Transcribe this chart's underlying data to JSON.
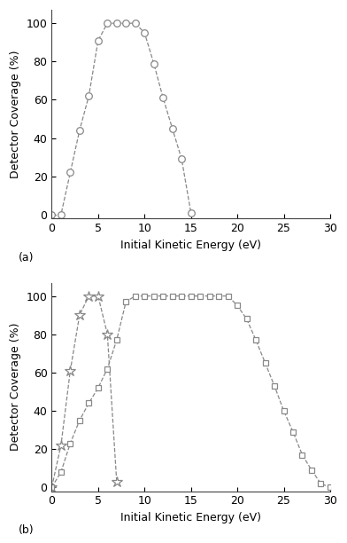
{
  "panel_a": {
    "x": [
      0,
      1,
      2,
      3,
      4,
      5,
      6,
      7,
      8,
      9,
      10,
      11,
      12,
      13,
      14,
      15
    ],
    "y": [
      0,
      0,
      22,
      44,
      62,
      91,
      100,
      100,
      100,
      100,
      95,
      79,
      61,
      45,
      29,
      1
    ],
    "color": "#888888",
    "linestyle": "--",
    "marker": "o",
    "markersize": 5.5,
    "markerfacecolor": "white",
    "markeredgecolor": "#888888",
    "linewidth": 0.9
  },
  "panel_b_star": {
    "x": [
      0,
      1,
      2,
      3,
      4,
      5,
      6,
      7
    ],
    "y": [
      0,
      22,
      61,
      90,
      100,
      100,
      80,
      3
    ],
    "color": "#888888",
    "linestyle": "--",
    "marker": "*",
    "markersize": 9,
    "markerfacecolor": "white",
    "markeredgecolor": "#888888",
    "linewidth": 0.9
  },
  "panel_b_square": {
    "x": [
      0,
      1,
      2,
      3,
      4,
      5,
      6,
      7,
      8,
      9,
      10,
      11,
      12,
      13,
      14,
      15,
      16,
      17,
      18,
      19,
      20,
      21,
      22,
      23,
      24,
      25,
      26,
      27,
      28,
      29,
      30
    ],
    "y": [
      0,
      8,
      23,
      35,
      44,
      52,
      62,
      77,
      97,
      100,
      100,
      100,
      100,
      100,
      100,
      100,
      100,
      100,
      100,
      100,
      95,
      88,
      77,
      65,
      53,
      40,
      29,
      17,
      9,
      2,
      0
    ],
    "color": "#888888",
    "linestyle": "--",
    "marker": "s",
    "markersize": 5,
    "markerfacecolor": "white",
    "markeredgecolor": "#888888",
    "linewidth": 0.9
  },
  "xlim": [
    0,
    30
  ],
  "ylim": [
    -2,
    107
  ],
  "xlabel": "Initial Kinetic Energy (eV)",
  "ylabel": "Detector Coverage (%)",
  "yticks": [
    0,
    20,
    40,
    60,
    80,
    100
  ],
  "xticks": [
    0,
    5,
    10,
    15,
    20,
    25,
    30
  ],
  "label_a": "(a)",
  "label_b": "(b)",
  "background_color": "white",
  "tick_fontsize": 9,
  "label_fontsize": 9,
  "axis_label_fontsize": 9
}
